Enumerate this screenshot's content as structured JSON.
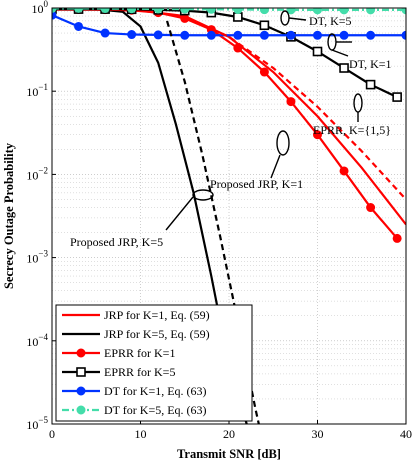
{
  "chart_data": {
    "type": "line",
    "title": "",
    "xlabel": "Transmit SNR [dB]",
    "ylabel": "Secrecy Outage Probability",
    "xlim": [
      0,
      40
    ],
    "ylim": [
      1e-05,
      1
    ],
    "yscale": "log",
    "grid": true,
    "legend_position": "bottom-left",
    "x_ticks": [
      0,
      10,
      20,
      30,
      40
    ],
    "y_ticks": [
      {
        "value": 1e-05,
        "base": "10",
        "exp": "−5"
      },
      {
        "value": 0.0001,
        "base": "10",
        "exp": "−4"
      },
      {
        "value": 0.001,
        "base": "10",
        "exp": "−3"
      },
      {
        "value": 0.01,
        "base": "10",
        "exp": "−2"
      },
      {
        "value": 0.1,
        "base": "10",
        "exp": "−1"
      },
      {
        "value": 1,
        "base": "10",
        "exp": "0"
      }
    ],
    "series": [
      {
        "name": "JRP for K=1, Eq. (59)",
        "color": "#ff0000",
        "dash": "solid",
        "marker": "none",
        "x": [
          0,
          5,
          10,
          15,
          20,
          25,
          30,
          35,
          40
        ],
        "y": [
          0.96,
          0.955,
          0.93,
          0.8,
          0.45,
          0.17,
          0.05,
          0.012,
          0.0025
        ]
      },
      {
        "name": "JRP for K=5, Eq. (59)",
        "color": "#000000",
        "dash": "solid",
        "marker": "none",
        "x": [
          0,
          5,
          8,
          10,
          12,
          14,
          16,
          18,
          20,
          22
        ],
        "y": [
          0.98,
          0.97,
          0.9,
          0.6,
          0.22,
          0.04,
          0.006,
          0.0006,
          5e-05,
          1e-05
        ]
      },
      {
        "name": "EPRR for K=1",
        "color": "#ff0000",
        "dash": "solid",
        "marker": "circle",
        "x": [
          0,
          3,
          6,
          9,
          12,
          15,
          18,
          21,
          24,
          27,
          30,
          33,
          36,
          39
        ],
        "y": [
          0.96,
          0.958,
          0.955,
          0.94,
          0.88,
          0.75,
          0.55,
          0.33,
          0.17,
          0.075,
          0.03,
          0.011,
          0.004,
          0.0017
        ]
      },
      {
        "name": "EPRR for K=5",
        "color": "#000000",
        "dash": "solid",
        "marker": "square",
        "x": [
          0,
          3,
          6,
          9,
          12,
          15,
          18,
          21,
          24,
          27,
          30,
          33,
          36,
          39
        ],
        "y": [
          0.97,
          0.97,
          0.97,
          0.965,
          0.95,
          0.93,
          0.88,
          0.78,
          0.62,
          0.45,
          0.3,
          0.19,
          0.12,
          0.085
        ]
      },
      {
        "name": "DT for K=1, Eq. (63)",
        "color": "#0033ff",
        "dash": "solid",
        "marker": "circle",
        "x": [
          0,
          3,
          6,
          9,
          12,
          15,
          18,
          21,
          24,
          27,
          30,
          33,
          36,
          40
        ],
        "y": [
          0.82,
          0.6,
          0.5,
          0.48,
          0.475,
          0.47,
          0.47,
          0.47,
          0.47,
          0.47,
          0.47,
          0.47,
          0.47,
          0.47
        ]
      },
      {
        "name": "DT for K=5, Eq. (63)",
        "color": "#44ddaa",
        "dash": "dashdot",
        "marker": "circle",
        "x": [
          0,
          3,
          6,
          9,
          12,
          15,
          18,
          21,
          24,
          27,
          30,
          33,
          36,
          40
        ],
        "y": [
          0.99,
          0.99,
          0.985,
          0.98,
          0.975,
          0.97,
          0.965,
          0.96,
          0.955,
          0.95,
          0.95,
          0.95,
          0.95,
          0.95
        ]
      },
      {
        "name": "",
        "color": "#000000",
        "dash": "dashed",
        "marker": "none",
        "x": [
          13,
          15,
          17,
          19,
          21,
          23,
          24
        ],
        "y": [
          0.7,
          0.13,
          0.017,
          0.0018,
          0.00017,
          1.5e-05,
          5e-06
        ]
      },
      {
        "name": "",
        "color": "#ff0000",
        "dash": "dashed",
        "marker": "none",
        "x": [
          15,
          20,
          25,
          30,
          35,
          40
        ],
        "y": [
          0.78,
          0.45,
          0.19,
          0.065,
          0.019,
          0.005
        ]
      }
    ],
    "annotations": [
      {
        "text": "DT, K=5"
      },
      {
        "text": "DT, K=1"
      },
      {
        "text": "EPRR, K={1,5}"
      },
      {
        "text": "Proposed JRP, K=1"
      },
      {
        "text": "Proposed JRP, K=5"
      }
    ]
  }
}
